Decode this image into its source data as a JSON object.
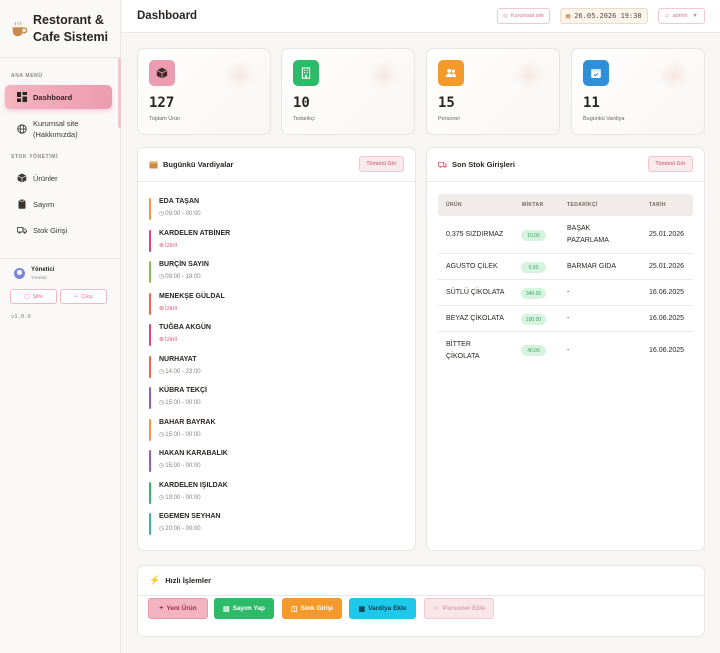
{
  "app": {
    "title_line1": "Restorant &",
    "title_line2": "Cafe Sistemi"
  },
  "sidebar": {
    "section_main": "ANA MENÜ",
    "section_stock": "STOK YÖNETİMİ",
    "items": [
      {
        "label": "Dashboard",
        "icon": "grid-icon",
        "active": true
      },
      {
        "label_line1": "Kurumsal site",
        "label_line2": "(Hakkımızda)",
        "icon": "globe-icon"
      },
      {
        "label": "Ürünler",
        "icon": "box-icon"
      },
      {
        "label": "Sayım",
        "icon": "clipboard-icon"
      },
      {
        "label": "Stok Girişi",
        "icon": "truck-icon"
      }
    ],
    "user": {
      "name": "Yönetici",
      "role": "Yönetici",
      "password_btn": "Şifre",
      "logout_btn": "Çıkış"
    },
    "version": "v1.0.0"
  },
  "topbar": {
    "title": "Dashboard",
    "site_link": "Kurumsal site",
    "datetime": "26.05.2026 19:38",
    "user_menu": "admin"
  },
  "stats": [
    {
      "value": "127",
      "label": "Toplam Ürün",
      "color": "#ec9cb0",
      "icon": "box-icon"
    },
    {
      "value": "10",
      "label": "Tedarikçi",
      "color": "#2dbb6a",
      "icon": "building-icon"
    },
    {
      "value": "15",
      "label": "Personel",
      "color": "#f39a2b",
      "icon": "users-icon"
    },
    {
      "value": "11",
      "label": "Bugünkü Vardiya",
      "color": "#2f8fd8",
      "icon": "calendar-icon"
    }
  ],
  "shifts_panel": {
    "title": "Bugünkü Vardiyalar",
    "view_all": "Tümünü Gör",
    "items": [
      {
        "name": "EDA TAŞAN",
        "time": "09:00 - 00:00",
        "off": false,
        "color": "#f39a2b"
      },
      {
        "name": "KARDELEN ATBİNER",
        "time": "İzinli",
        "off": true,
        "color": "#e0447a"
      },
      {
        "name": "BURÇİN SAYIN",
        "time": "09:00 - 18:00",
        "off": false,
        "color": "#8bc34a"
      },
      {
        "name": "MENEKŞE GÜLDAL",
        "time": "İzinli",
        "off": true,
        "color": "#f06a3a"
      },
      {
        "name": "TUĞBA AKGÜN",
        "time": "İzinli",
        "off": true,
        "color": "#e0447a"
      },
      {
        "name": "NURHAYAT",
        "time": "14:00 - 23:00",
        "off": false,
        "color": "#f06a3a"
      },
      {
        "name": "KÜBRA TEKÇİ",
        "time": "15:00 - 00:00",
        "off": false,
        "color": "#9c5bc2"
      },
      {
        "name": "BAHAR BAYRAK",
        "time": "15:00 - 00:00",
        "off": false,
        "color": "#f39a2b"
      },
      {
        "name": "HAKAN KARABALIK",
        "time": "15:00 - 00:00",
        "off": false,
        "color": "#9c5bc2"
      },
      {
        "name": "KARDELEN IŞILDAK",
        "time": "19:00 - 00:00",
        "off": false,
        "color": "#2dbb6a"
      },
      {
        "name": "EGEMEN SEYHAN",
        "time": "20:00 - 00:00",
        "off": false,
        "color": "#2dbb9a"
      }
    ]
  },
  "stock_panel": {
    "title": "Son Stok Girişleri",
    "view_all": "Tümünü Gör",
    "columns": [
      "ÜRÜN",
      "MİKTAR",
      "TEDARİKÇİ",
      "TARİH"
    ],
    "rows": [
      {
        "product": "0,375 SIZDIRMAZ",
        "qty": "10.00",
        "supplier_line1": "BAŞAK",
        "supplier_line2": "PAZARLAMA",
        "date": "25.01.2026"
      },
      {
        "product": "AGUSTO ÇİLEK",
        "qty": "5.00",
        "supplier_line1": "BARMAR GIDA",
        "supplier_line2": "",
        "date": "25.01.2026"
      },
      {
        "product": "SÜTLÜ ÇİKOLATA",
        "qty": "340.00",
        "supplier_line1": "-",
        "supplier_line2": "",
        "date": "16.06.2025"
      },
      {
        "product": "BEYAZ ÇİKOLATA",
        "qty": "100.00",
        "supplier_line1": "-",
        "supplier_line2": "",
        "date": "16.06.2025"
      },
      {
        "product_line1": "BİTTER",
        "product_line2": "ÇİKOLATA",
        "qty": "40.00",
        "supplier_line1": "-",
        "supplier_line2": "",
        "date": "16.06.2025"
      }
    ]
  },
  "quick_actions": {
    "title": "Hızlı İşlemler",
    "buttons": [
      {
        "label": "Yeni Ürün",
        "color": "#f4b3c0",
        "text_color": "#9b2d47"
      },
      {
        "label": "Sayım Yap",
        "color": "#2dbb6a",
        "text_color": "#ffffff"
      },
      {
        "label": "Stok Girişi",
        "color": "#f39a2b",
        "text_color": "#ffffff"
      },
      {
        "label": "Vardiya Ekle",
        "color": "#1ec8ea",
        "text_color": "#103a4a"
      },
      {
        "label": "Personel Ekle",
        "color": "#f8e6e9",
        "text_color": "#d8a6b0"
      }
    ]
  }
}
